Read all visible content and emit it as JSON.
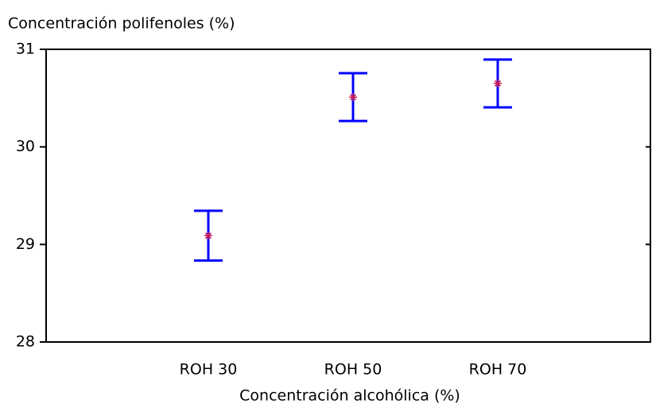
{
  "chart_data": {
    "type": "errorbar",
    "y_label": "Concentración polifenoles (%)",
    "x_label": "Concentración alcohólica (%)",
    "categories": [
      "ROH 30",
      "ROH 50",
      "ROH 70"
    ],
    "values": [
      29.09,
      30.51,
      30.65
    ],
    "errors": [
      0.255,
      0.245,
      0.245
    ],
    "color": "#c8185a",
    "error_color": "#0000ff",
    "ylim": [
      28,
      31
    ],
    "yticks": [
      28,
      29,
      30,
      31
    ],
    "grid": false
  }
}
